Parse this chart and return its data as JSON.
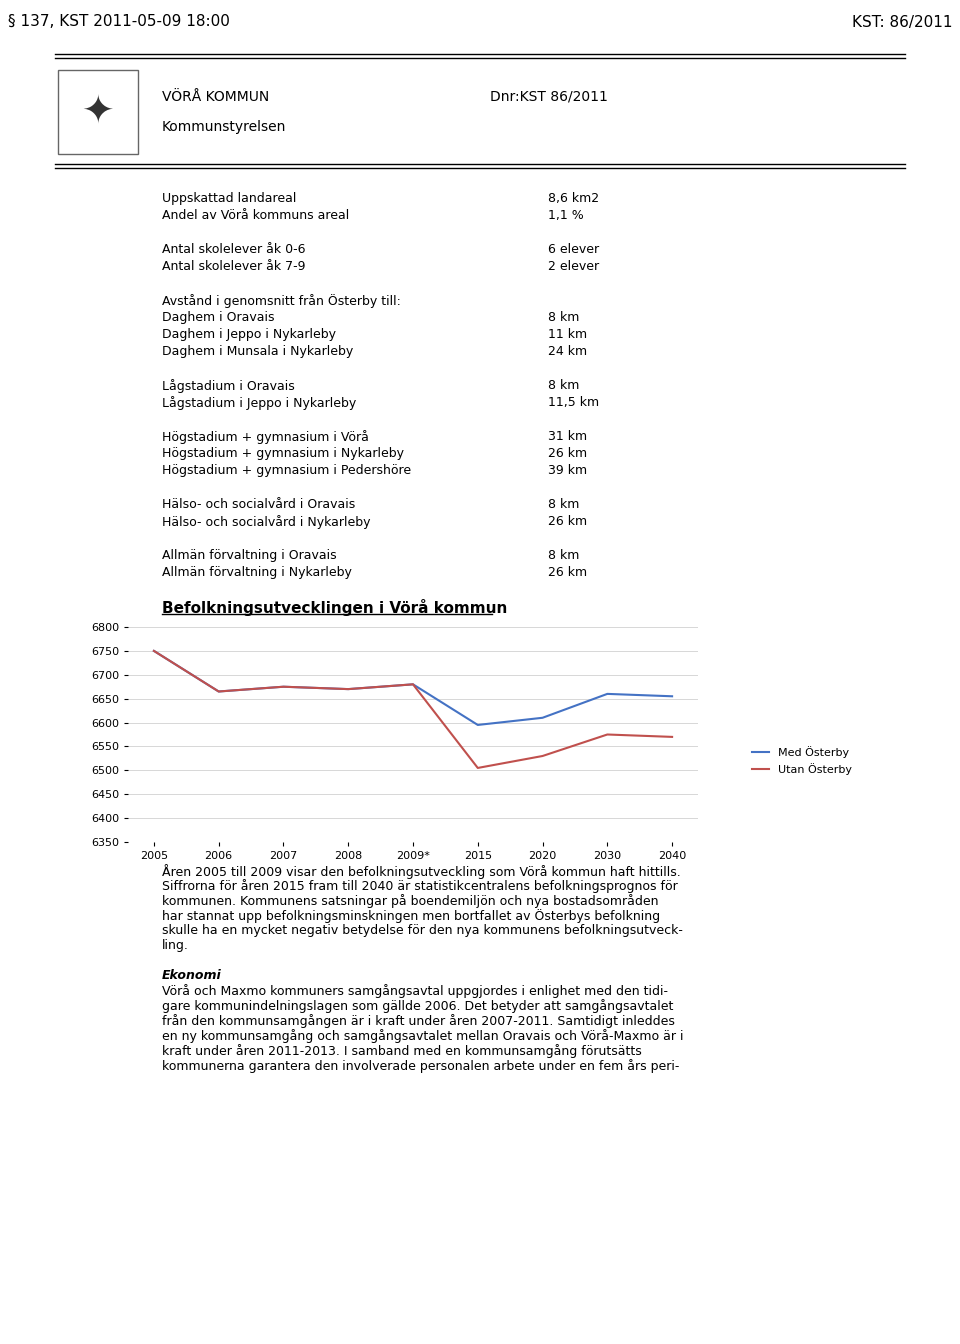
{
  "header_left": "§ 137, KST 2011-05-09 18:00",
  "header_right": "KST: 86/2011",
  "header_bg": "#FFFFC8",
  "org_name": "VÖRÅ KOMMUN",
  "org_sub": "Kommunstyrelsen",
  "dnr": "Dnr:KST 86/2011",
  "info_rows": [
    [
      "Uppskattad landareal",
      "8,6 km2"
    ],
    [
      "Andel av Vörå kommuns areal",
      "1,1 %"
    ],
    [
      "",
      ""
    ],
    [
      "Antal skolelever åk 0-6",
      "6 elever"
    ],
    [
      "Antal skolelever åk 7-9",
      "2 elever"
    ],
    [
      "",
      ""
    ],
    [
      "Avstånd i genomsnitt från Österby till:",
      ""
    ],
    [
      "Daghem i Oravais",
      "8 km"
    ],
    [
      "Daghem i Jeppo i Nykarleby",
      "11 km"
    ],
    [
      "Daghem i Munsala i Nykarleby",
      "24 km"
    ],
    [
      "",
      ""
    ],
    [
      "Lågstadium i Oravais",
      "8 km"
    ],
    [
      "Lågstadium i Jeppo i Nykarleby",
      "11,5 km"
    ],
    [
      "",
      ""
    ],
    [
      "Högstadium + gymnasium i Vörå",
      "31 km"
    ],
    [
      "Högstadium + gymnasium i Nykarleby",
      "26 km"
    ],
    [
      "Högstadium + gymnasium i Pedershöre",
      "39 km"
    ],
    [
      "",
      ""
    ],
    [
      "Hälso- och socialvård i Oravais",
      "8 km"
    ],
    [
      "Hälso- och socialvård i Nykarleby",
      "26 km"
    ],
    [
      "",
      ""
    ],
    [
      "Allmän förvaltning i Oravais",
      "8 km"
    ],
    [
      "Allmän förvaltning i Nykarleby",
      "26 km"
    ]
  ],
  "chart_title": "Befolkningsutvecklingen i Vörå kommun",
  "chart_x_labels": [
    "2005",
    "2006",
    "2007",
    "2008",
    "2009*",
    "2015",
    "2020",
    "2030",
    "2040"
  ],
  "med_osterby": [
    6750,
    6665,
    6675,
    6670,
    6680,
    6595,
    6610,
    6660,
    6655
  ],
  "utan_osterby": [
    6750,
    6665,
    6675,
    6670,
    6680,
    6505,
    6530,
    6575,
    6570
  ],
  "y_min": 6350,
  "y_max": 6800,
  "y_step": 50,
  "legend_med": "Med Österby",
  "legend_utan": "Utan Österby",
  "line_color_med": "#4472C4",
  "line_color_utan": "#C0504D",
  "body_bg": "#FFFFFF",
  "bottom_text": [
    "Åren 2005 till 2009 visar den befolkningsutveckling som Vörå kommun haft hittills.",
    "Siffrorna för åren 2015 fram till 2040 är statistikcentralens befolkningsprognos för",
    "kommunen. Kommunens satsningar på boendemiljön och nya bostadsområden",
    "har stannat upp befolkningsminskningen men bortfallet av Österbys befolkning",
    "skulle ha en mycket negativ betydelse för den nya kommunens befolkningsutveck-",
    "ling.",
    "",
    "Ekonomi",
    "Vörå och Maxmo kommuners samgångsavtal uppgjordes i enlighet med den tidi-",
    "gare kommunindelningslagen som gällde 2006. Det betyder att samgångsavtalet",
    "från den kommunsamgången är i kraft under åren 2007-2011. Samtidigt inleddes",
    "en ny kommunsamgång och samgångsavtalet mellan Oravais och Vörå-Maxmo är i",
    "kraft under åren 2011-2013. I samband med en kommunsamgång förutsätts",
    "kommunerna garantera den involverade personalen arbete under en fem års peri-"
  ]
}
